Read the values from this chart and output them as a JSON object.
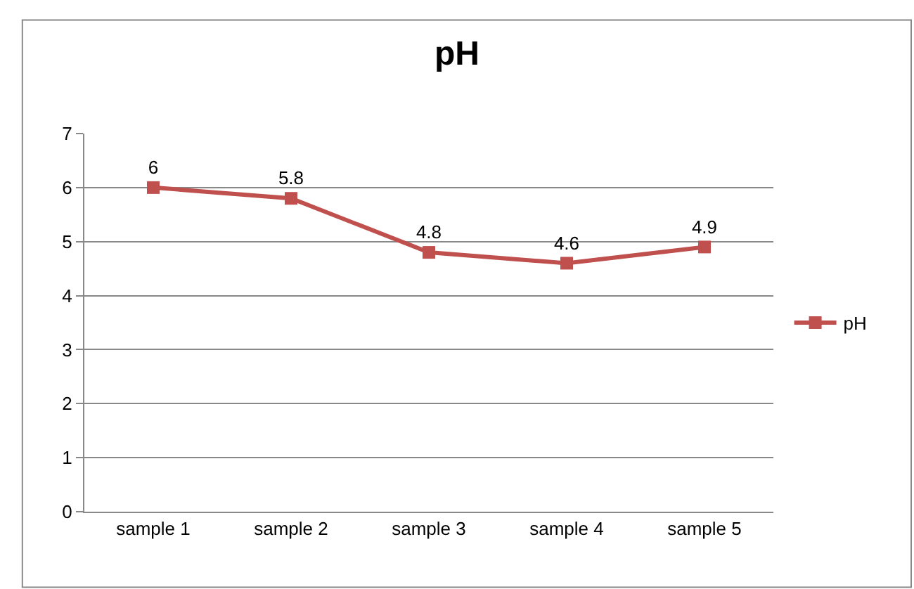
{
  "chart_data": {
    "type": "line",
    "title": "pH",
    "categories": [
      "sample 1",
      "sample 2",
      "sample 3",
      "sample 4",
      "sample 5"
    ],
    "series": [
      {
        "name": "pH",
        "color": "#c0504d",
        "values": [
          6,
          5.8,
          4.8,
          4.6,
          4.9
        ]
      }
    ],
    "ylim": [
      0,
      7
    ],
    "yticks": [
      0,
      1,
      2,
      3,
      4,
      5,
      6,
      7
    ],
    "grid": "y",
    "legend": "right",
    "marker": "square",
    "line_style": "solid",
    "data_labels": true
  }
}
